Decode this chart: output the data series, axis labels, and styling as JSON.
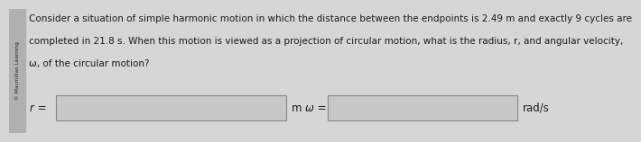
{
  "bg_color": "#d6d6d6",
  "text_color": "#1a1a1a",
  "sidebar_color": "#b0b0b0",
  "box_face_color": "#c8c8c8",
  "box_edge_color": "#888888",
  "line1": "Consider a situation of simple harmonic motion in which the distance between the endpoints is 2.49 m and exactly 9 cycles are",
  "line2": "completed in 21.8 s. When this motion is viewed as a projection of circular motion, what is the radius, r, and angular velocity,",
  "line3": "ω, of the circular motion?",
  "label_r": "r =",
  "label_m": "m",
  "label_omega": "ω =",
  "label_rads": "rad/s",
  "sidebar_text": "© Macmillan Learning",
  "font_size_text": 7.5,
  "font_size_labels": 8.5,
  "font_size_sidebar": 4.2
}
